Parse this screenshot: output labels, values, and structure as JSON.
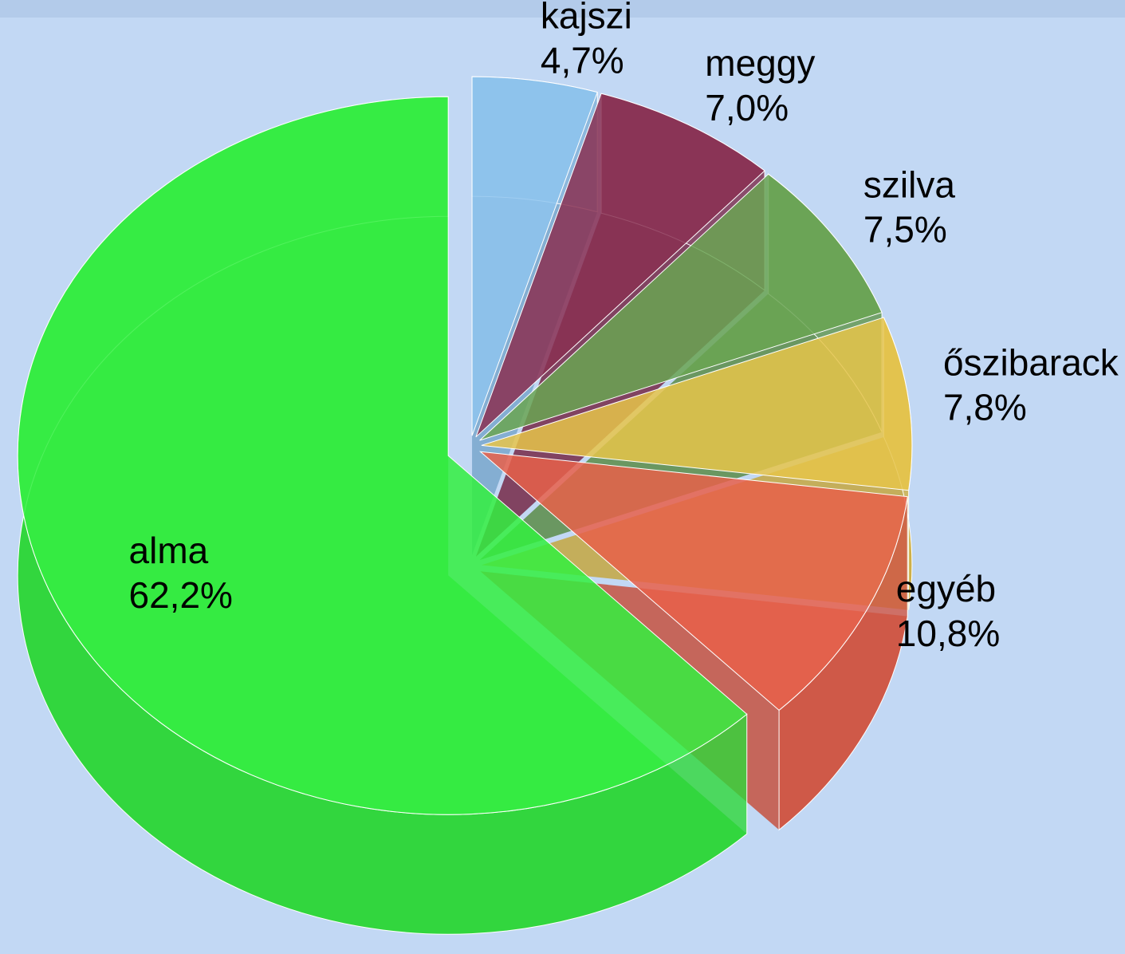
{
  "chart_data": {
    "type": "pie",
    "categories": [
      "kajszi",
      "meggy",
      "szilva",
      "őszibarack",
      "egyéb",
      "alma"
    ],
    "values": [
      4.7,
      7.0,
      7.5,
      7.8,
      10.8,
      62.2
    ],
    "value_labels": [
      "4,7%",
      "7,0%",
      "7,5%",
      "7,8%",
      "10,8%",
      "62,2%"
    ],
    "colors": [
      "#8ec4ef",
      "#8a3052",
      "#6aa552",
      "#e6c44a",
      "#e8604a",
      "#33f040"
    ]
  }
}
